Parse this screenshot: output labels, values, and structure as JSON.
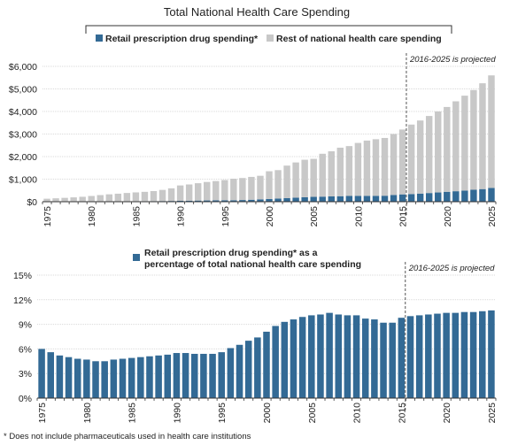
{
  "colors": {
    "rx": "#336a95",
    "rest": "#c8c8c8",
    "grid": "#d9d9d9",
    "axis": "#333333",
    "projection_line": "#555555"
  },
  "chart_data": [
    {
      "type": "bar",
      "stacked": true,
      "title": "Total National Health Care Spending",
      "x": [
        1975,
        1976,
        1977,
        1978,
        1979,
        1980,
        1981,
        1982,
        1983,
        1984,
        1985,
        1986,
        1987,
        1988,
        1989,
        1990,
        1991,
        1992,
        1993,
        1994,
        1995,
        1996,
        1997,
        1998,
        1999,
        2000,
        2001,
        2002,
        2003,
        2004,
        2005,
        2006,
        2007,
        2008,
        2009,
        2010,
        2011,
        2012,
        2013,
        2014,
        2015,
        2016,
        2017,
        2018,
        2019,
        2020,
        2021,
        2022,
        2023,
        2024,
        2025
      ],
      "series": [
        {
          "name": "Retail prescription drug spending*",
          "color": "#336a95",
          "values": [
            8,
            9,
            10,
            11,
            12,
            12,
            13,
            15,
            17,
            19,
            21,
            24,
            27,
            30,
            34,
            40,
            45,
            51,
            56,
            60,
            60,
            65,
            75,
            88,
            105,
            120,
            140,
            160,
            180,
            200,
            215,
            225,
            235,
            245,
            255,
            255,
            260,
            260,
            265,
            300,
            325,
            340,
            360,
            385,
            410,
            440,
            465,
            495,
            530,
            560,
            610
          ]
        },
        {
          "name": "Rest of national health care spending",
          "color": "#c8c8c8",
          "values": [
            125,
            142,
            161,
            181,
            206,
            243,
            281,
            312,
            338,
            368,
            392,
            414,
            443,
            493,
            559,
            681,
            719,
            769,
            819,
            856,
            900,
            955,
            975,
            1012,
            1045,
            1230,
            1260,
            1440,
            1560,
            1660,
            1685,
            1900,
            2000,
            2150,
            2210,
            2350,
            2450,
            2510,
            2560,
            2700,
            2875,
            3080,
            3240,
            3415,
            3590,
            3760,
            3985,
            4205,
            4420,
            4690,
            4990
          ]
        }
      ],
      "ylim": [
        0,
        6000
      ],
      "yticks": [
        "$0",
        "$1,000",
        "$2,000",
        "$3,000",
        "$4,000",
        "$5,000",
        "$6,000"
      ],
      "xticks": [
        "1975",
        "1980",
        "1985",
        "1990",
        "1995",
        "2000",
        "2005",
        "2010",
        "2015",
        "2020",
        "2025"
      ],
      "projection_year": 2016,
      "annotation": "2016-2025 is projected",
      "grid": true,
      "legend": "top"
    },
    {
      "type": "bar",
      "x": [
        1975,
        1976,
        1977,
        1978,
        1979,
        1980,
        1981,
        1982,
        1983,
        1984,
        1985,
        1986,
        1987,
        1988,
        1989,
        1990,
        1991,
        1992,
        1993,
        1994,
        1995,
        1996,
        1997,
        1998,
        1999,
        2000,
        2001,
        2002,
        2003,
        2004,
        2005,
        2006,
        2007,
        2008,
        2009,
        2010,
        2011,
        2012,
        2013,
        2014,
        2015,
        2016,
        2017,
        2018,
        2019,
        2020,
        2021,
        2022,
        2023,
        2024,
        2025
      ],
      "series": [
        {
          "name": "Retail prescription drug spending* as a percentage of total national health care spending",
          "color": "#336a95",
          "values": [
            6.0,
            5.6,
            5.2,
            5.0,
            4.8,
            4.7,
            4.5,
            4.5,
            4.7,
            4.8,
            4.9,
            5.0,
            5.1,
            5.2,
            5.3,
            5.5,
            5.5,
            5.4,
            5.4,
            5.4,
            5.6,
            6.1,
            6.5,
            7.0,
            7.4,
            8.1,
            8.8,
            9.3,
            9.6,
            9.9,
            10.1,
            10.2,
            10.4,
            10.2,
            10.1,
            10.1,
            9.7,
            9.6,
            9.2,
            9.2,
            9.8,
            10.0,
            10.1,
            10.2,
            10.3,
            10.4,
            10.4,
            10.5,
            10.5,
            10.6,
            10.7
          ]
        }
      ],
      "ylim": [
        0,
        15
      ],
      "yticks": [
        "0%",
        "3%",
        "6%",
        "9%",
        "12%",
        "15%"
      ],
      "xticks": [
        "1975",
        "1980",
        "1985",
        "1990",
        "1995",
        "2000",
        "2005",
        "2010",
        "2015",
        "2020",
        "2025"
      ],
      "projection_year": 2016,
      "annotation": "2016-2025 is projected",
      "grid": true,
      "legend": "top"
    }
  ],
  "legend_top": {
    "item1": "Retail prescription drug spending*",
    "item2": "Rest of national health care spending"
  },
  "legend_bottom": {
    "line1": "Retail prescription drug spending* as a",
    "line2": "percentage of total national health care spending"
  },
  "footnote": "* Does not include pharmaceuticals used in health care institutions"
}
